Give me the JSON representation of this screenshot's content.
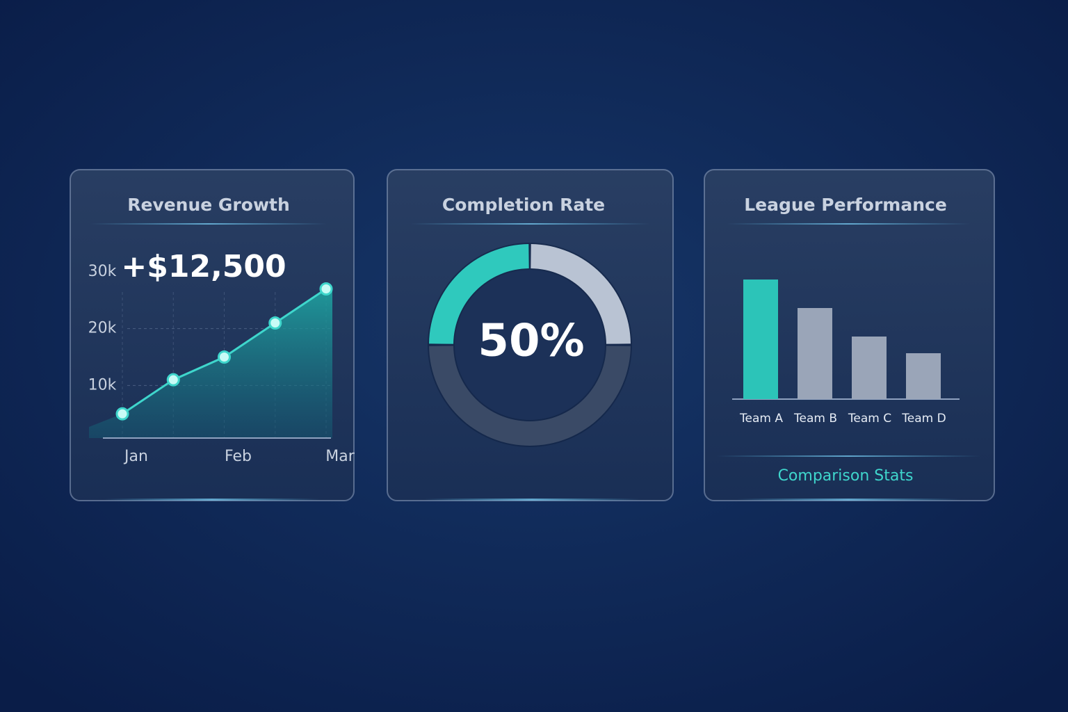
{
  "chart_data": [
    {
      "type": "line",
      "title": "Revenue Growth",
      "annotation": "+$12,500",
      "categories": [
        "Jan",
        null,
        "Feb",
        null,
        "Mar"
      ],
      "values": [
        5000,
        11000,
        15000,
        21000,
        27000
      ],
      "color": "#3fd6cc",
      "ylim": [
        0,
        30000
      ],
      "yticks": [
        {
          "value": 10000,
          "label": "10k"
        },
        {
          "value": 20000,
          "label": "20k"
        },
        {
          "value": 30000,
          "label": "30k"
        }
      ],
      "grid": true
    },
    {
      "type": "donut",
      "title": "Completion Rate",
      "annotation": "50%",
      "values": [
        25,
        25,
        50
      ],
      "colors": [
        "#2fc9bd",
        "#b9c3d3",
        "#3a4a66"
      ]
    },
    {
      "type": "bar",
      "title": "League Performance",
      "caption": "Comparison Stats",
      "categories": [
        "Team A",
        "Team B",
        "Team C",
        "Team D"
      ],
      "values": [
        172,
        131,
        90,
        66
      ],
      "colors": [
        "#2cc4b8",
        "#9aa5b8",
        "#9aa5b8",
        "#9aa5b8"
      ]
    }
  ]
}
